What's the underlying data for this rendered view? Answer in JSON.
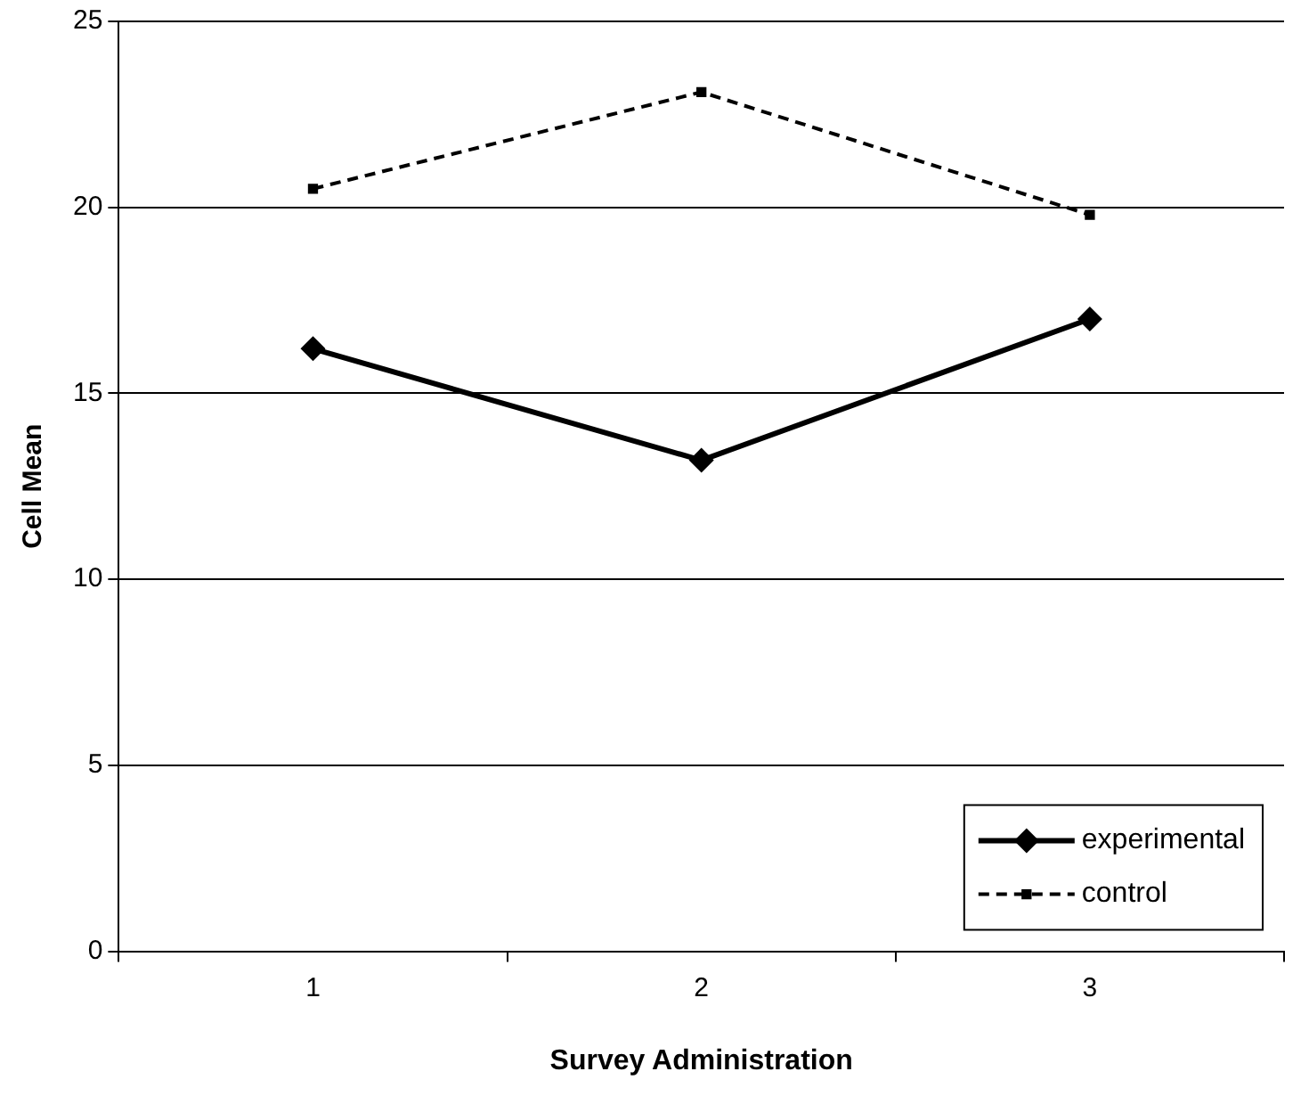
{
  "chart_data": {
    "type": "line",
    "xlabel": "Survey Administration",
    "ylabel": "Cell Mean",
    "categories": [
      "1",
      "2",
      "3"
    ],
    "series": [
      {
        "name": "experimental",
        "color": "#000000",
        "values": [
          16.2,
          13.2,
          17.0
        ],
        "marker": "diamond",
        "line_style": "solid"
      },
      {
        "name": "control",
        "color": "#000000",
        "values": [
          20.5,
          23.1,
          19.8
        ],
        "marker": "square",
        "line_style": "dashed"
      }
    ],
    "ylim": [
      0,
      25
    ],
    "yticks": [
      0,
      5,
      10,
      15,
      20,
      25
    ],
    "grid": "y",
    "legend": "bottom right"
  }
}
